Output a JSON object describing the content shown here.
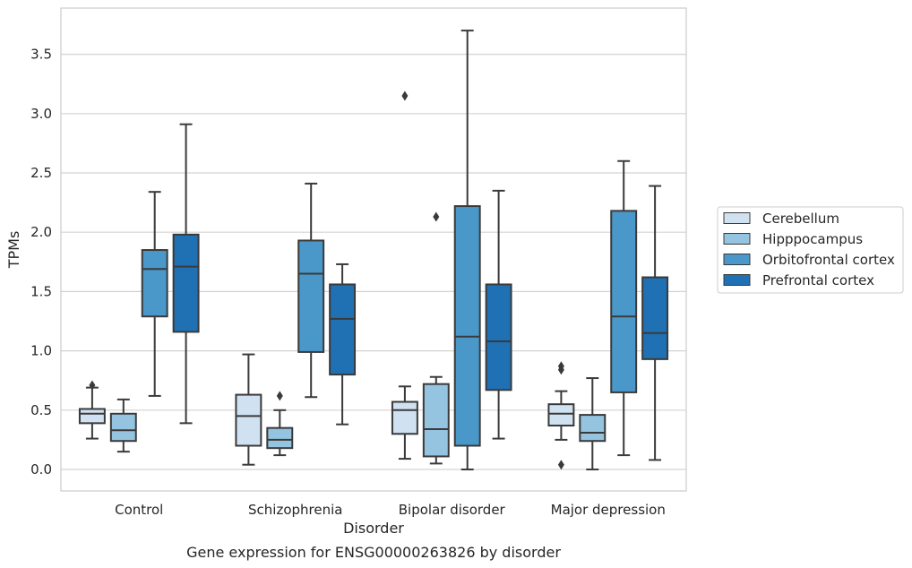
{
  "chart_data": {
    "type": "box",
    "caption": "Gene expression for ENSG00000263826 by disorder",
    "xlabel": "Disorder",
    "ylabel": "TPMs",
    "ylim": [
      -0.18,
      3.9
    ],
    "yticks": [
      "0.0",
      "0.5",
      "1.0",
      "1.5",
      "2.0",
      "2.5",
      "3.0",
      "3.5"
    ],
    "grid": "horizontal",
    "legend_position": "right",
    "categories": [
      "Control",
      "Schizophrenia",
      "Bipolar disorder",
      "Major depression"
    ],
    "series": [
      {
        "name": "Cerebellum",
        "color": "#d0e1f1",
        "boxes": [
          {
            "whisker_low": 0.26,
            "q1": 0.39,
            "median": 0.47,
            "q3": 0.51,
            "whisker_high": 0.69,
            "outliers": [
              0.71
            ]
          },
          {
            "whisker_low": 0.04,
            "q1": 0.2,
            "median": 0.45,
            "q3": 0.63,
            "whisker_high": 0.97,
            "outliers": []
          },
          {
            "whisker_low": 0.09,
            "q1": 0.3,
            "median": 0.5,
            "q3": 0.57,
            "whisker_high": 0.7,
            "outliers": [
              3.15
            ]
          },
          {
            "whisker_low": 0.25,
            "q1": 0.37,
            "median": 0.47,
            "q3": 0.55,
            "whisker_high": 0.66,
            "outliers": [
              0.04,
              0.84,
              0.87
            ]
          }
        ]
      },
      {
        "name": "Hipppocampus",
        "color": "#94c4df",
        "boxes": [
          {
            "whisker_low": 0.15,
            "q1": 0.24,
            "median": 0.33,
            "q3": 0.47,
            "whisker_high": 0.59,
            "outliers": []
          },
          {
            "whisker_low": 0.12,
            "q1": 0.18,
            "median": 0.25,
            "q3": 0.35,
            "whisker_high": 0.5,
            "outliers": [
              0.62
            ]
          },
          {
            "whisker_low": 0.05,
            "q1": 0.11,
            "median": 0.34,
            "q3": 0.72,
            "whisker_high": 0.78,
            "outliers": [
              2.13
            ]
          },
          {
            "whisker_low": 0.0,
            "q1": 0.24,
            "median": 0.31,
            "q3": 0.46,
            "whisker_high": 0.77,
            "outliers": []
          }
        ]
      },
      {
        "name": "Orbitofrontal cortex",
        "color": "#4a98c9",
        "boxes": [
          {
            "whisker_low": 0.62,
            "q1": 1.29,
            "median": 1.69,
            "q3": 1.85,
            "whisker_high": 2.34,
            "outliers": []
          },
          {
            "whisker_low": 0.61,
            "q1": 0.99,
            "median": 1.65,
            "q3": 1.93,
            "whisker_high": 2.41,
            "outliers": []
          },
          {
            "whisker_low": 0.0,
            "q1": 0.2,
            "median": 1.12,
            "q3": 2.22,
            "whisker_high": 3.7,
            "outliers": []
          },
          {
            "whisker_low": 0.12,
            "q1": 0.65,
            "median": 1.29,
            "q3": 2.18,
            "whisker_high": 2.6,
            "outliers": []
          }
        ]
      },
      {
        "name": "Prefrontal cortex",
        "color": "#2070b4",
        "boxes": [
          {
            "whisker_low": 0.39,
            "q1": 1.16,
            "median": 1.71,
            "q3": 1.98,
            "whisker_high": 2.91,
            "outliers": []
          },
          {
            "whisker_low": 0.38,
            "q1": 0.8,
            "median": 1.27,
            "q3": 1.56,
            "whisker_high": 1.73,
            "outliers": []
          },
          {
            "whisker_low": 0.26,
            "q1": 0.67,
            "median": 1.08,
            "q3": 1.56,
            "whisker_high": 2.35,
            "outliers": []
          },
          {
            "whisker_low": 0.08,
            "q1": 0.93,
            "median": 1.15,
            "q3": 1.62,
            "whisker_high": 2.39,
            "outliers": []
          }
        ]
      }
    ]
  }
}
